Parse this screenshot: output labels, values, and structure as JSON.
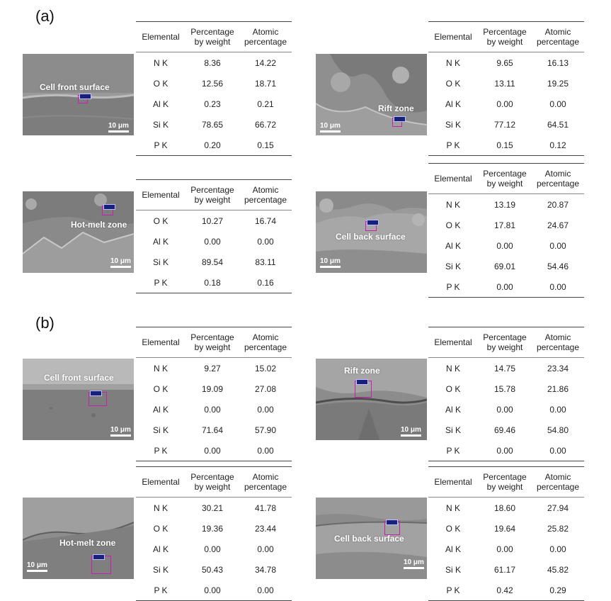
{
  "sections": [
    {
      "label": "(a)",
      "panels": [
        {
          "image_label": "Cell front surface",
          "scale_label": "10 μm",
          "columns": [
            "Elemental",
            "Percentage by weight",
            "Atomic percentage"
          ],
          "rows": [
            [
              "N K",
              "8.36",
              "14.22"
            ],
            [
              "O K",
              "12.56",
              "18.71"
            ],
            [
              "Al K",
              "0.23",
              "0.21"
            ],
            [
              "Si K",
              "78.65",
              "66.72"
            ],
            [
              "P K",
              "0.20",
              "0.15"
            ]
          ]
        },
        {
          "image_label": "Rift zone",
          "scale_label": "10 μm",
          "columns": [
            "Elemental",
            "Percentage by weight",
            "Atomic percentage"
          ],
          "rows": [
            [
              "N K",
              "9.65",
              "16.13"
            ],
            [
              "O K",
              "13.11",
              "19.25"
            ],
            [
              "Al K",
              "0.00",
              "0.00"
            ],
            [
              "Si K",
              "77.12",
              "64.51"
            ],
            [
              "P K",
              "0.15",
              "0.12"
            ]
          ]
        },
        {
          "image_label": "Hot-melt zone",
          "scale_label": "10 μm",
          "columns": [
            "Elemental",
            "Percentage by weight",
            "Atomic percentage"
          ],
          "rows": [
            [
              "O K",
              "10.27",
              "16.74"
            ],
            [
              "Al K",
              "0.00",
              "0.00"
            ],
            [
              "Si K",
              "89.54",
              "83.11"
            ],
            [
              "P K",
              "0.18",
              "0.16"
            ]
          ]
        },
        {
          "image_label": "Cell back surface",
          "scale_label": "10 μm",
          "columns": [
            "Elemental",
            "Percentage by weight",
            "Atomic percentage"
          ],
          "rows": [
            [
              "N K",
              "13.19",
              "20.87"
            ],
            [
              "O K",
              "17.81",
              "24.67"
            ],
            [
              "Al K",
              "0.00",
              "0.00"
            ],
            [
              "Si K",
              "69.01",
              "54.46"
            ],
            [
              "P K",
              "0.00",
              "0.00"
            ]
          ]
        }
      ]
    },
    {
      "label": "(b)",
      "panels": [
        {
          "image_label": "Cell front surface",
          "scale_label": "10 μm",
          "columns": [
            "Elemental",
            "Percentage by weight",
            "Atomic percentage"
          ],
          "rows": [
            [
              "N K",
              "9.27",
              "15.02"
            ],
            [
              "O K",
              "19.09",
              "27.08"
            ],
            [
              "Al K",
              "0.00",
              "0.00"
            ],
            [
              "Si K",
              "71.64",
              "57.90"
            ],
            [
              "P K",
              "0.00",
              "0.00"
            ]
          ]
        },
        {
          "image_label": "Rift zone",
          "scale_label": "10 μm",
          "columns": [
            "Elemental",
            "Percentage by weight",
            "Atomic percentage"
          ],
          "rows": [
            [
              "N K",
              "14.75",
              "23.34"
            ],
            [
              "O K",
              "15.78",
              "21.86"
            ],
            [
              "Al K",
              "0.00",
              "0.00"
            ],
            [
              "Si K",
              "69.46",
              "54.80"
            ],
            [
              "P K",
              "0.00",
              "0.00"
            ]
          ]
        },
        {
          "image_label": "Hot-melt zone",
          "scale_label": "10 μm",
          "columns": [
            "Elemental",
            "Percentage by weight",
            "Atomic percentage"
          ],
          "rows": [
            [
              "N K",
              "30.21",
              "41.78"
            ],
            [
              "O K",
              "19.36",
              "23.44"
            ],
            [
              "Al K",
              "0.00",
              "0.00"
            ],
            [
              "Si K",
              "50.43",
              "34.78"
            ],
            [
              "P K",
              "0.00",
              "0.00"
            ]
          ]
        },
        {
          "image_label": "Cell back surface",
          "scale_label": "10 μm",
          "columns": [
            "Elemental",
            "Percentage by weight",
            "Atomic percentage"
          ],
          "rows": [
            [
              "N K",
              "18.60",
              "27.94"
            ],
            [
              "O K",
              "19.64",
              "25.82"
            ],
            [
              "Al K",
              "0.00",
              "0.00"
            ],
            [
              "Si K",
              "61.17",
              "45.82"
            ],
            [
              "P K",
              "0.42",
              "0.29"
            ]
          ]
        }
      ]
    }
  ]
}
